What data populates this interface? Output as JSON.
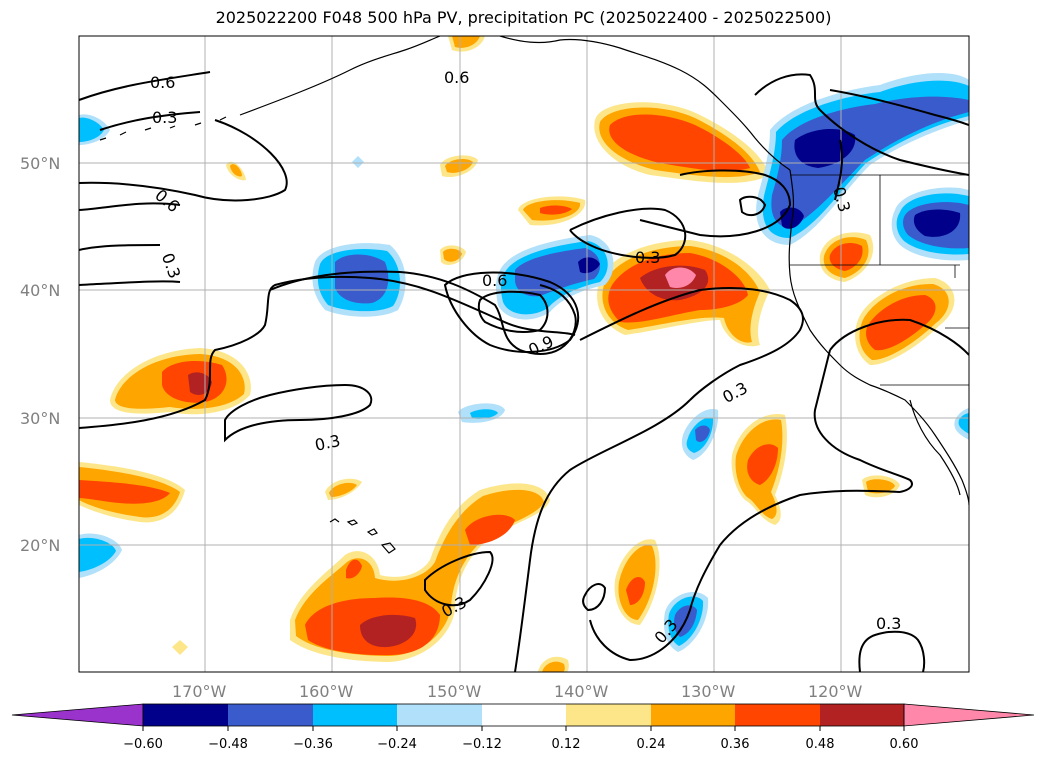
{
  "title": "2025022200 F048 500 hPa PV, precipitation PC (2025022400 - 2025022500)",
  "map": {
    "lon_ticks": [
      "170°W",
      "160°W",
      "150°W",
      "140°W",
      "130°W",
      "120°W"
    ],
    "lat_ticks": [
      "50°N",
      "40°N",
      "30°N",
      "20°N"
    ],
    "contour_labels": [
      "0.6",
      "0.3",
      "0.6",
      "0.3",
      "0.3",
      "0.6",
      "0.3",
      "0.6",
      "0.9",
      "0.3",
      "0.3",
      "0.3",
      "0.3",
      "0.3"
    ]
  },
  "colorbar": {
    "ticks": [
      "−0.60",
      "−0.48",
      "−0.36",
      "−0.24",
      "−0.12",
      "0.12",
      "0.24",
      "0.36",
      "0.48",
      "0.60"
    ],
    "colors": {
      "lt_neg060": "#9933cc",
      "neg060_neg048": "#00008b",
      "neg048_neg036": "#3a5bcc",
      "neg036_neg024": "#00bfff",
      "neg024_neg012": "#b0e0fa",
      "neg012_012": "#ffffff",
      "p012_024": "#fde68a",
      "p024_036": "#ffa500",
      "p036_048": "#ff4500",
      "p048_060": "#b22222",
      "gt_060": "#ff88aa"
    }
  }
}
